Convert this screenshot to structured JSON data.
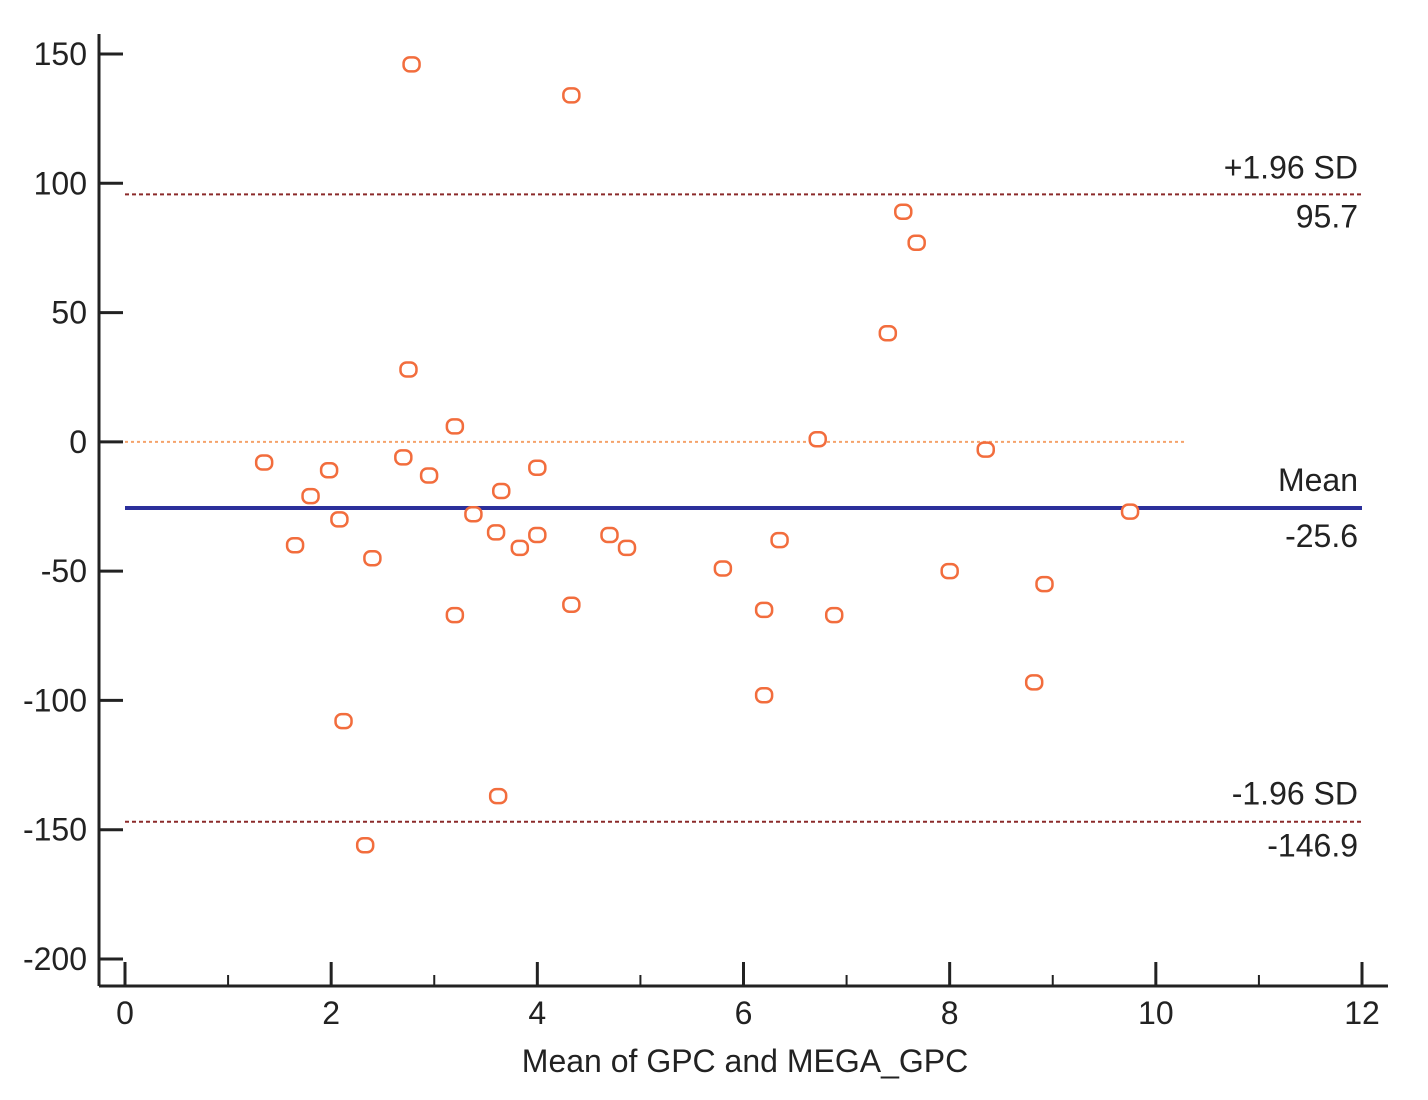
{
  "chart_data": {
    "type": "scatter",
    "title": "",
    "xlabel": "Mean of GPC and MEGA_GPC",
    "ylabel": "",
    "xlim": [
      0,
      12
    ],
    "ylim": [
      -200,
      150
    ],
    "x_ticks": [
      0,
      2,
      4,
      6,
      8,
      10,
      12
    ],
    "x_tick_labels": [
      "0",
      "2",
      "4",
      "6",
      "8",
      "10",
      "12"
    ],
    "y_ticks": [
      150,
      100,
      50,
      0,
      -50,
      -100,
      -150,
      -200
    ],
    "y_tick_labels": [
      "150",
      "100",
      "50",
      "0",
      "-50",
      "-100",
      "-150",
      "-200"
    ],
    "colors": {
      "points": "#f26d3d",
      "mean_line": "#2b2f9b",
      "sd_lines": "#8b2a2a",
      "zero_line": "#f5a36b",
      "axis": "#222222"
    },
    "reference_lines": {
      "zero": {
        "value": 0,
        "x_end": 10.3
      },
      "mean": {
        "value": -25.6,
        "label": "Mean",
        "value_label": "-25.6"
      },
      "upper": {
        "value": 95.7,
        "label": "+1.96 SD",
        "value_label": "95.7"
      },
      "lower": {
        "value": -146.9,
        "label": "-1.96 SD",
        "value_label": "-146.9"
      }
    },
    "points": [
      {
        "x": 2.78,
        "y": 146
      },
      {
        "x": 4.33,
        "y": 134
      },
      {
        "x": 7.55,
        "y": 89
      },
      {
        "x": 7.68,
        "y": 77
      },
      {
        "x": 7.4,
        "y": 42
      },
      {
        "x": 2.75,
        "y": 28
      },
      {
        "x": 3.2,
        "y": 6
      },
      {
        "x": 6.72,
        "y": 1
      },
      {
        "x": 8.35,
        "y": -3
      },
      {
        "x": 2.7,
        "y": -6
      },
      {
        "x": 1.35,
        "y": -8
      },
      {
        "x": 4.0,
        "y": -10
      },
      {
        "x": 1.98,
        "y": -11
      },
      {
        "x": 2.95,
        "y": -13
      },
      {
        "x": 3.65,
        "y": -19
      },
      {
        "x": 1.8,
        "y": -21
      },
      {
        "x": 9.75,
        "y": -27
      },
      {
        "x": 3.38,
        "y": -28
      },
      {
        "x": 2.08,
        "y": -30
      },
      {
        "x": 3.6,
        "y": -35
      },
      {
        "x": 4.0,
        "y": -36
      },
      {
        "x": 4.7,
        "y": -36
      },
      {
        "x": 6.35,
        "y": -38
      },
      {
        "x": 1.65,
        "y": -40
      },
      {
        "x": 3.83,
        "y": -41
      },
      {
        "x": 4.87,
        "y": -41
      },
      {
        "x": 2.4,
        "y": -45
      },
      {
        "x": 5.8,
        "y": -49
      },
      {
        "x": 8.0,
        "y": -50
      },
      {
        "x": 8.92,
        "y": -55
      },
      {
        "x": 4.33,
        "y": -63
      },
      {
        "x": 6.2,
        "y": -65
      },
      {
        "x": 3.2,
        "y": -67
      },
      {
        "x": 6.88,
        "y": -67
      },
      {
        "x": 8.82,
        "y": -93
      },
      {
        "x": 6.2,
        "y": -98
      },
      {
        "x": 2.12,
        "y": -108
      },
      {
        "x": 3.62,
        "y": -137
      },
      {
        "x": 2.33,
        "y": -156
      }
    ]
  }
}
